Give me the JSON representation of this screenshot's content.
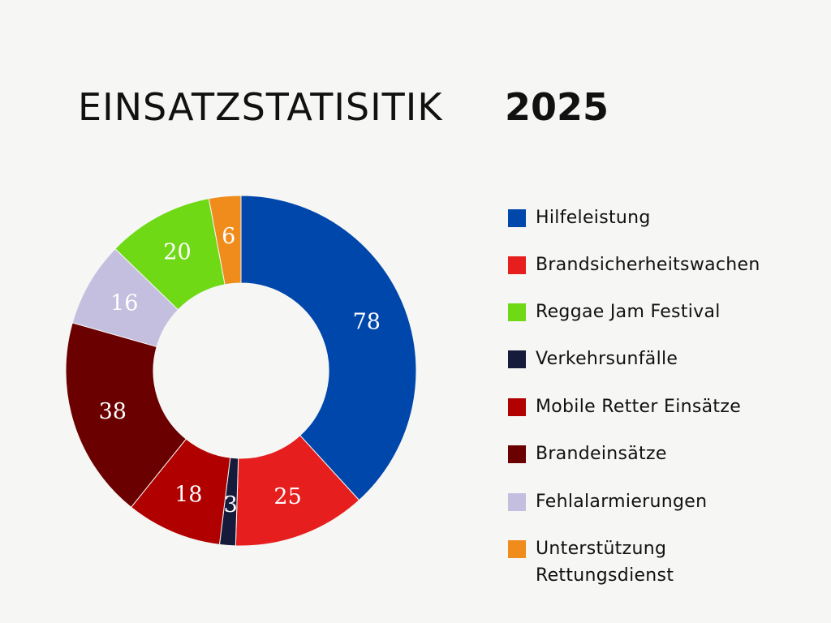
{
  "header": {
    "title": "EINSATZSTATISITIK",
    "year": "2025"
  },
  "chart_data": {
    "type": "pie",
    "variant": "donut",
    "title": "EINSATZSTATISITIK 2025",
    "legend_position": "right",
    "labels": [
      "Hilfeleistung",
      "Brandsicherheitswachen",
      "Reggae Jam Festival",
      "Verkehrsunfälle",
      "Mobile Retter Einsätze",
      "Brandeinsätze",
      "Fehlalarmierungen",
      "Unterstützung Rettungsdienst"
    ],
    "colors": [
      "#0047ab",
      "#e61e1e",
      "#6fd916",
      "#161b3b",
      "#b00000",
      "#6b0000",
      "#c5bfdf",
      "#ef8c1b"
    ],
    "slices": [
      {
        "label": "Hilfeleistung",
        "value": 78
      },
      {
        "label": "Brandsicherheitswachen",
        "value": 25
      },
      {
        "label": "Verkehrsunfälle",
        "value": 3
      },
      {
        "label": "Mobile Retter Einsätze",
        "value": 18
      },
      {
        "label": "Brandeinsätze",
        "value": 38
      },
      {
        "label": "Fehlalarmierungen",
        "value": 16
      },
      {
        "label": "Reggae Jam Festival",
        "value": 20
      },
      {
        "label": "Unterstützung Rettungsdienst",
        "value": 6
      }
    ]
  }
}
